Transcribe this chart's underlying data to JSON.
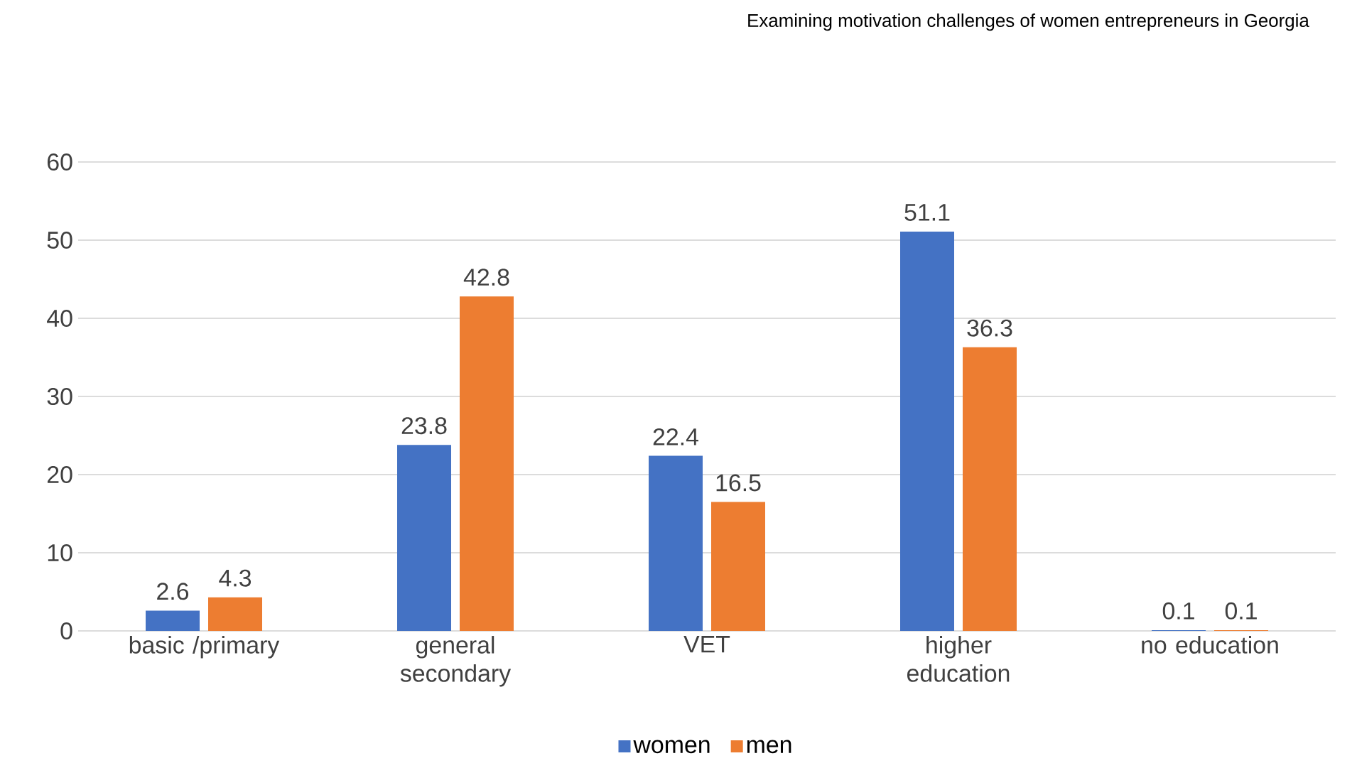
{
  "chart_data": {
    "type": "bar",
    "title": "Examining motivation challenges of women entrepreneurs in Georgia",
    "categories": [
      "basic /primary",
      "general secondary",
      "VET",
      "higher education",
      "no education"
    ],
    "series": [
      {
        "name": "women",
        "color": "#4472c4",
        "values": [
          2.6,
          23.8,
          22.4,
          51.1,
          0.1
        ]
      },
      {
        "name": "men",
        "color": "#ed7d31",
        "values": [
          4.3,
          42.8,
          16.5,
          36.3,
          0.1
        ]
      }
    ],
    "ylim": [
      0,
      60
    ],
    "yticks": [
      0,
      10,
      20,
      30,
      40,
      50,
      60
    ],
    "grid": "y",
    "legend": "bottom",
    "data_labels": true
  }
}
